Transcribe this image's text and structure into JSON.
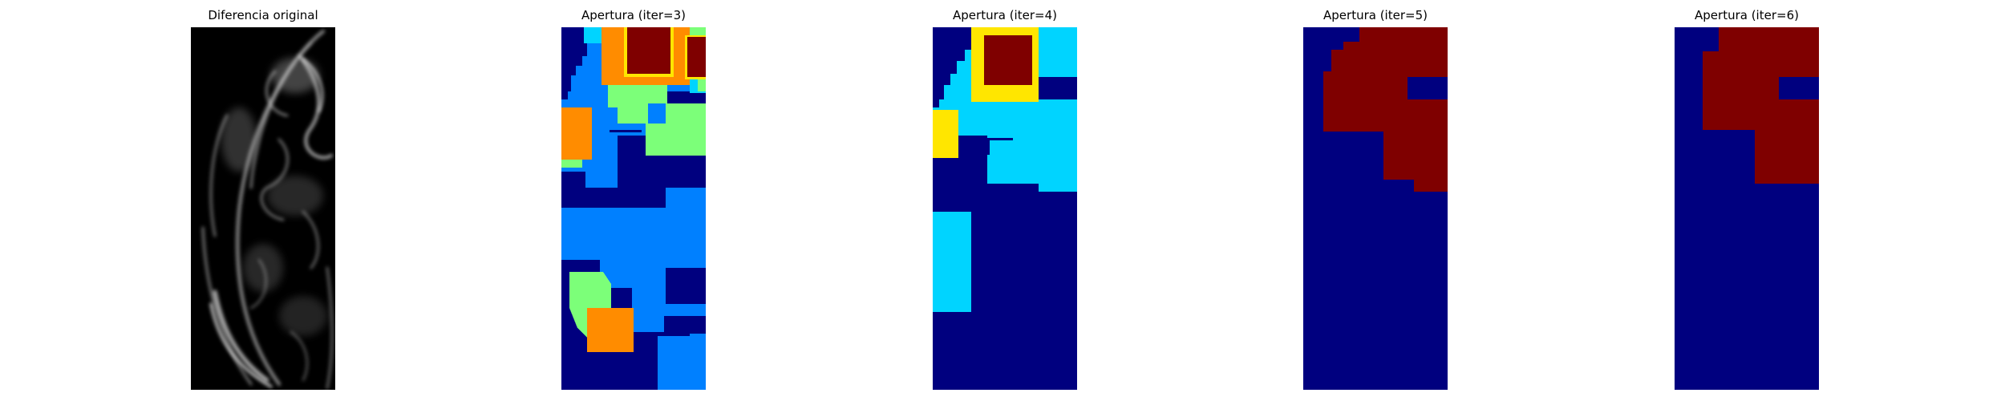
{
  "figure": {
    "panels": [
      {
        "title": "Diferencia original",
        "kind": "grayscale"
      },
      {
        "title": "Apertura (iter=3)",
        "kind": "jet-map"
      },
      {
        "title": "Apertura (iter=4)",
        "kind": "jet-map"
      },
      {
        "title": "Apertura (iter=5)",
        "kind": "jet-map"
      },
      {
        "title": "Apertura (iter=6)",
        "kind": "jet-map"
      }
    ]
  },
  "colors": {
    "dark_blue": "#00007f",
    "blue": "#0080ff",
    "cyan": "#00d4ff",
    "green": "#7cff79",
    "yellow": "#ffe600",
    "orange": "#ff8c00",
    "dark_red": "#7f0000",
    "black": "#000000",
    "white": "#ffffff"
  }
}
